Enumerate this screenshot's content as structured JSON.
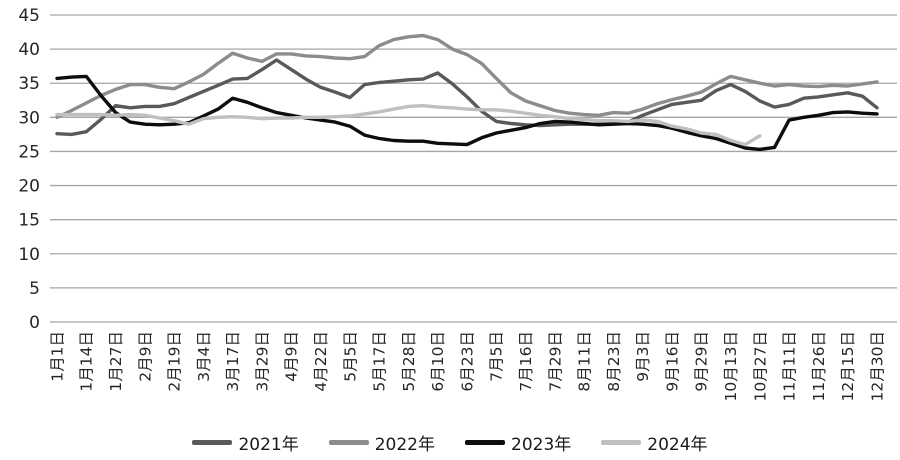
{
  "chart_data": {
    "type": "line",
    "title": "",
    "xlabel": "",
    "ylabel": "",
    "ylim": [
      0,
      45
    ],
    "y_ticks": [
      0,
      5,
      10,
      15,
      20,
      25,
      30,
      35,
      40,
      45
    ],
    "grid": "horizontal",
    "gridline_color": "#a6a6a6",
    "legend_position": "bottom",
    "categories": [
      "1月1日",
      "1月14日",
      "1月27日",
      "2月9日",
      "2月19日",
      "3月4日",
      "3月17日",
      "3月29日",
      "4月9日",
      "4月22日",
      "5月5日",
      "5月17日",
      "5月28日",
      "6月10日",
      "6月23日",
      "7月5日",
      "7月16日",
      "7月29日",
      "8月11日",
      "8月23日",
      "9月3日",
      "9月16日",
      "9月29日",
      "10月13日",
      "10月27日",
      "11月11日",
      "11月26日",
      "12月15日",
      "12月30日"
    ],
    "points_per_label": 2,
    "series": [
      {
        "name": "2021年",
        "color": "#595959",
        "values": [
          27.6,
          27.5,
          27.9,
          29.7,
          31.7,
          31.4,
          31.6,
          31.6,
          32.0,
          32.9,
          33.8,
          34.7,
          35.6,
          35.7,
          37.0,
          38.4,
          37.0,
          35.6,
          34.4,
          33.7,
          32.9,
          34.8,
          35.1,
          35.3,
          35.5,
          35.6,
          36.5,
          34.9,
          33.0,
          30.9,
          29.4,
          29.1,
          28.9,
          28.8,
          28.9,
          29.0,
          29.0,
          29.0,
          29.1,
          29.3,
          30.3,
          31.1,
          31.9,
          32.2,
          32.5,
          33.9,
          34.8,
          33.8,
          32.4,
          31.5,
          31.9,
          32.8,
          33.0,
          33.3,
          33.6,
          33.1,
          31.4
        ]
      },
      {
        "name": "2022年",
        "color": "#8c8c8c",
        "values": [
          30.0,
          31.0,
          32.1,
          33.2,
          34.1,
          34.8,
          34.8,
          34.4,
          34.2,
          35.2,
          36.3,
          37.9,
          39.4,
          38.7,
          38.2,
          39.3,
          39.3,
          39.0,
          38.9,
          38.7,
          38.6,
          38.9,
          40.5,
          41.4,
          41.8,
          42.0,
          41.4,
          40.0,
          39.2,
          37.9,
          35.7,
          33.6,
          32.4,
          31.7,
          31.0,
          30.6,
          30.4,
          30.3,
          30.7,
          30.6,
          31.2,
          32.0,
          32.6,
          33.1,
          33.7,
          34.9,
          36.0,
          35.5,
          35.0,
          34.6,
          34.8,
          34.6,
          34.5,
          34.7,
          34.6,
          34.9,
          35.2
        ]
      },
      {
        "name": "2023年",
        "color": "#0d0d0d",
        "values": [
          35.7,
          35.9,
          36.0,
          33.2,
          30.7,
          29.3,
          29.0,
          28.9,
          29.0,
          29.2,
          30.2,
          31.2,
          32.8,
          32.2,
          31.4,
          30.7,
          30.3,
          29.9,
          29.6,
          29.3,
          28.7,
          27.4,
          26.9,
          26.6,
          26.5,
          26.5,
          26.2,
          26.1,
          26.0,
          27.0,
          27.7,
          28.1,
          28.5,
          29.1,
          29.4,
          29.3,
          29.1,
          28.9,
          29.0,
          29.1,
          29.0,
          28.8,
          28.4,
          27.8,
          27.3,
          26.9,
          26.2,
          25.5,
          25.3,
          25.6,
          29.6,
          30.0,
          30.3,
          30.7,
          30.8,
          30.6,
          30.5
        ]
      },
      {
        "name": "2024年",
        "color": "#bfbfbf",
        "values": [
          30.4,
          30.4,
          30.4,
          30.4,
          30.3,
          30.4,
          30.3,
          29.9,
          29.5,
          29.0,
          29.8,
          30.0,
          30.1,
          30.0,
          29.8,
          29.9,
          29.9,
          30.0,
          30.0,
          30.1,
          30.2,
          30.5,
          30.8,
          31.2,
          31.6,
          31.7,
          31.5,
          31.4,
          31.2,
          31.1,
          31.1,
          30.9,
          30.6,
          30.3,
          30.1,
          29.8,
          29.7,
          29.5,
          29.5,
          29.4,
          29.6,
          29.4,
          28.7,
          28.3,
          27.7,
          27.5,
          26.6,
          26.0,
          27.3
        ]
      }
    ]
  }
}
